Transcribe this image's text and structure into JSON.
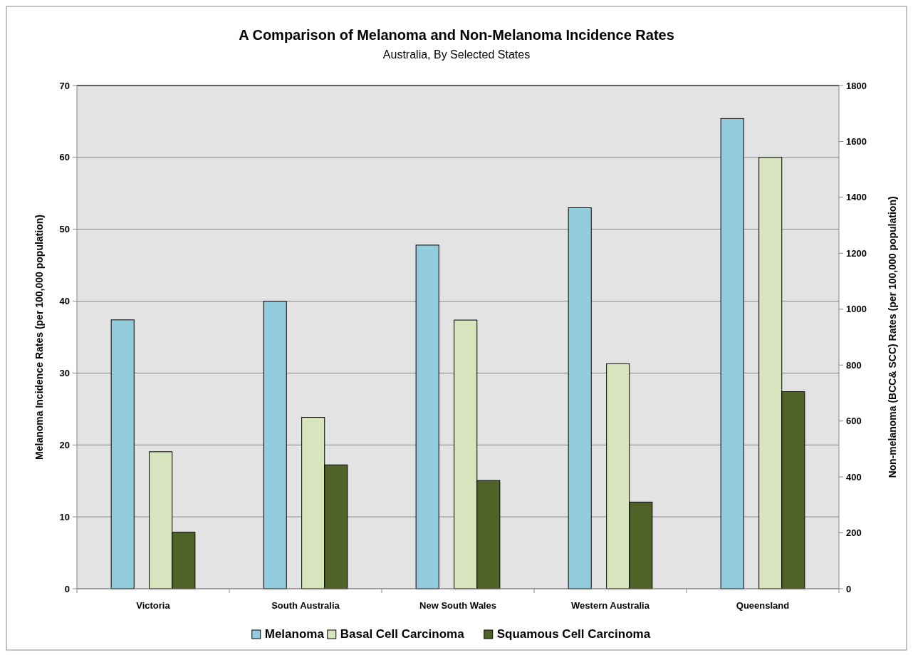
{
  "chart_data": {
    "type": "bar",
    "title": "A Comparison of Melanoma and Non-Melanoma Incidence Rates",
    "subtitle": "Australia, By Selected States",
    "ylabel": "Melanoma Incidence Rates (per 100,000 population)",
    "y2label": "Non-melanoma (BCC& SCC) Rates (per 100,000 population)",
    "categories": [
      "Victoria",
      "South Australia",
      "New South Wales",
      "Western Australia",
      "Queensland"
    ],
    "series": [
      {
        "name": "Melanoma",
        "color": "#93cddd",
        "values": [
          37.4,
          40,
          47.8,
          53,
          65.4
        ]
      },
      {
        "name": "Basal Cell Carcinoma",
        "color": "#d7e4bd",
        "axis": "y2",
        "values": [
          490,
          613,
          961,
          805,
          1543
        ]
      },
      {
        "name": "Squamous Cell Carcinoma",
        "color": "#4f6228",
        "axis": "y2",
        "values": [
          202,
          443,
          387,
          310,
          705
        ]
      }
    ],
    "ylim": [
      0,
      70
    ],
    "yticks": [
      0,
      10,
      20,
      30,
      40,
      50,
      60,
      70
    ],
    "y2lim": [
      0,
      1800
    ],
    "y2ticks": [
      0,
      200,
      400,
      600,
      800,
      1000,
      1200,
      1400,
      1600,
      1800
    ],
    "grid": "y",
    "legend": "bottom"
  }
}
